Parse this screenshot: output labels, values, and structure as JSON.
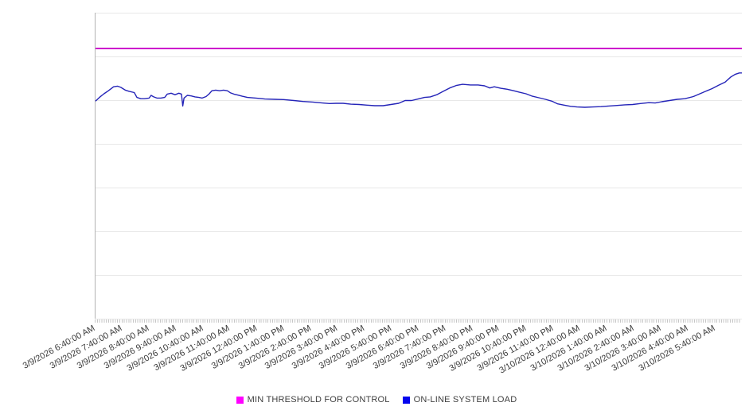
{
  "chart_data": {
    "type": "line",
    "title": "",
    "background": "#ffffff",
    "plot": {
      "grid": "horizontal-only",
      "gridline_color": "#e8e8e8",
      "axis_line_color": "#b3b3b3",
      "minor_tick_color": "#c6c6c6",
      "horizontal_gridline_count": 8,
      "x_minor_tick_count": 288
    },
    "x_axis": {
      "interval": "labels every 1 hour, minor ticks every 5 minutes",
      "label_rotation_deg": -29,
      "label_color": "#3b3b3b",
      "range": [
        "3/9/2026 6:40:00 AM",
        "3/10/2026 6:40:00 AM"
      ],
      "tick_labels": [
        "3/9/2026 6:40:00 AM",
        "3/9/2026 7:40:00 AM",
        "3/9/2026 8:40:00 AM",
        "3/9/2026 9:40:00 AM",
        "3/9/2026 10:40:00 AM",
        "3/9/2026 11:40:00 AM",
        "3/9/2026 12:40:00 PM",
        "3/9/2026 1:40:00 PM",
        "3/9/2026 2:40:00 PM",
        "3/9/2026 3:40:00 PM",
        "3/9/2026 4:40:00 PM",
        "3/9/2026 5:40:00 PM",
        "3/9/2026 6:40:00 PM",
        "3/9/2026 7:40:00 PM",
        "3/9/2026 8:40:00 PM",
        "3/9/2026 9:40:00 PM",
        "3/9/2026 10:40:00 PM",
        "3/9/2026 11:40:00 PM",
        "3/10/2026 12:40:00 AM",
        "3/10/2026 1:40:00 AM",
        "3/10/2026 2:40:00 AM",
        "3/10/2026 3:40:00 AM",
        "3/10/2026 4:40:00 AM",
        "3/10/2026 5:40:00 AM"
      ]
    },
    "y_axis": {
      "tick_labels": [],
      "units": "relative load: 0 = bottom axis, 1 = top of plot (no numeric scale shown in image)"
    },
    "series": [
      {
        "name": "MIN THRESHOLD FOR CONTROL",
        "type": "constant-line",
        "color": "#cc00cc",
        "value": 0.882
      },
      {
        "name": "ON-LINE SYSTEM LOAD",
        "type": "line",
        "color": "#2424b8",
        "points_format": "[fraction_of_24h_time_axis, relative_load]",
        "points": [
          [
            0.0,
            0.711
          ],
          [
            0.007,
            0.725
          ],
          [
            0.013,
            0.735
          ],
          [
            0.02,
            0.745
          ],
          [
            0.028,
            0.758
          ],
          [
            0.034,
            0.76
          ],
          [
            0.039,
            0.756
          ],
          [
            0.046,
            0.747
          ],
          [
            0.052,
            0.743
          ],
          [
            0.06,
            0.739
          ],
          [
            0.064,
            0.723
          ],
          [
            0.07,
            0.719
          ],
          [
            0.076,
            0.719
          ],
          [
            0.083,
            0.721
          ],
          [
            0.086,
            0.73
          ],
          [
            0.09,
            0.725
          ],
          [
            0.095,
            0.721
          ],
          [
            0.101,
            0.721
          ],
          [
            0.107,
            0.723
          ],
          [
            0.111,
            0.734
          ],
          [
            0.117,
            0.737
          ],
          [
            0.123,
            0.732
          ],
          [
            0.129,
            0.737
          ],
          [
            0.133,
            0.734
          ],
          [
            0.135,
            0.695
          ],
          [
            0.137,
            0.721
          ],
          [
            0.142,
            0.73
          ],
          [
            0.148,
            0.728
          ],
          [
            0.154,
            0.725
          ],
          [
            0.16,
            0.723
          ],
          [
            0.165,
            0.721
          ],
          [
            0.171,
            0.726
          ],
          [
            0.176,
            0.735
          ],
          [
            0.18,
            0.745
          ],
          [
            0.186,
            0.747
          ],
          [
            0.192,
            0.745
          ],
          [
            0.198,
            0.747
          ],
          [
            0.204,
            0.745
          ],
          [
            0.209,
            0.738
          ],
          [
            0.214,
            0.734
          ],
          [
            0.22,
            0.731
          ],
          [
            0.227,
            0.727
          ],
          [
            0.235,
            0.723
          ],
          [
            0.248,
            0.721
          ],
          [
            0.262,
            0.718
          ],
          [
            0.278,
            0.717
          ],
          [
            0.291,
            0.716
          ],
          [
            0.307,
            0.713
          ],
          [
            0.321,
            0.71
          ],
          [
            0.336,
            0.708
          ],
          [
            0.351,
            0.705
          ],
          [
            0.362,
            0.703
          ],
          [
            0.372,
            0.704
          ],
          [
            0.383,
            0.704
          ],
          [
            0.395,
            0.701
          ],
          [
            0.408,
            0.7
          ],
          [
            0.42,
            0.698
          ],
          [
            0.432,
            0.696
          ],
          [
            0.445,
            0.696
          ],
          [
            0.457,
            0.7
          ],
          [
            0.469,
            0.704
          ],
          [
            0.479,
            0.713
          ],
          [
            0.489,
            0.713
          ],
          [
            0.499,
            0.718
          ],
          [
            0.509,
            0.723
          ],
          [
            0.518,
            0.725
          ],
          [
            0.528,
            0.732
          ],
          [
            0.538,
            0.743
          ],
          [
            0.548,
            0.754
          ],
          [
            0.558,
            0.762
          ],
          [
            0.568,
            0.766
          ],
          [
            0.58,
            0.764
          ],
          [
            0.592,
            0.764
          ],
          [
            0.602,
            0.761
          ],
          [
            0.61,
            0.754
          ],
          [
            0.617,
            0.758
          ],
          [
            0.627,
            0.753
          ],
          [
            0.637,
            0.75
          ],
          [
            0.647,
            0.745
          ],
          [
            0.656,
            0.74
          ],
          [
            0.666,
            0.735
          ],
          [
            0.676,
            0.727
          ],
          [
            0.686,
            0.722
          ],
          [
            0.696,
            0.717
          ],
          [
            0.706,
            0.711
          ],
          [
            0.715,
            0.702
          ],
          [
            0.725,
            0.698
          ],
          [
            0.735,
            0.694
          ],
          [
            0.745,
            0.692
          ],
          [
            0.757,
            0.691
          ],
          [
            0.77,
            0.692
          ],
          [
            0.782,
            0.693
          ],
          [
            0.794,
            0.695
          ],
          [
            0.807,
            0.697
          ],
          [
            0.819,
            0.699
          ],
          [
            0.831,
            0.7
          ],
          [
            0.843,
            0.703
          ],
          [
            0.856,
            0.706
          ],
          [
            0.866,
            0.705
          ],
          [
            0.876,
            0.709
          ],
          [
            0.888,
            0.713
          ],
          [
            0.9,
            0.717
          ],
          [
            0.912,
            0.719
          ],
          [
            0.925,
            0.726
          ],
          [
            0.934,
            0.734
          ],
          [
            0.944,
            0.743
          ],
          [
            0.954,
            0.752
          ],
          [
            0.964,
            0.763
          ],
          [
            0.974,
            0.773
          ],
          [
            0.983,
            0.79
          ],
          [
            0.99,
            0.799
          ],
          [
            0.996,
            0.803
          ],
          [
            1.0,
            0.803
          ]
        ]
      }
    ],
    "legend": {
      "position": "bottom-center",
      "items": [
        {
          "label": "MIN THRESHOLD FOR CONTROL",
          "swatch_color": "#ff00ff"
        },
        {
          "label": "ON-LINE SYSTEM LOAD",
          "swatch_color": "#0505ee"
        }
      ]
    }
  }
}
